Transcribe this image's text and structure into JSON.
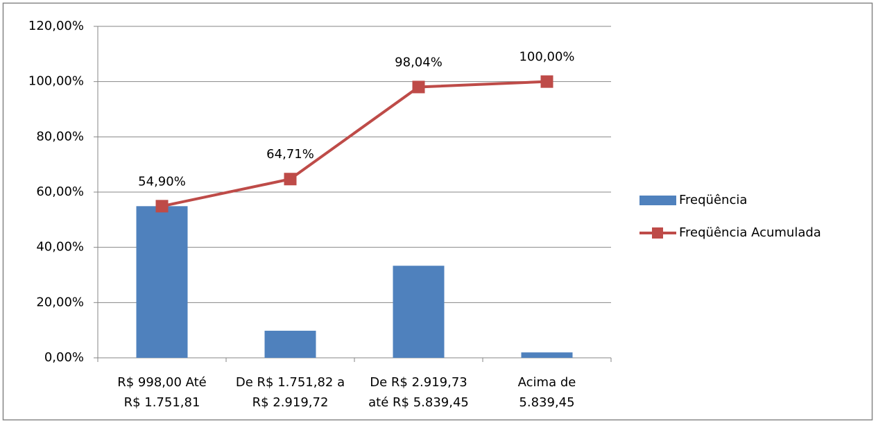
{
  "chart_data": {
    "type": "combo",
    "categories": [
      "R$ 998,00 Até\nR$ 1.751,81",
      "De R$ 1.751,82 a\nR$ 2.919,72",
      "De R$ 2.919,73\naté R$ 5.839,45",
      "Acima de\n5.839,45"
    ],
    "series": [
      {
        "name": "Freqüência",
        "type": "bar",
        "color": "#4f81bd",
        "values": [
          54.9,
          9.81,
          33.33,
          1.96
        ]
      },
      {
        "name": "Freqüência Acumulada",
        "type": "line",
        "color": "#be4b48",
        "values": [
          54.9,
          64.71,
          98.04,
          100.0
        ],
        "value_labels": [
          "54,90%",
          "64,71%",
          "98,04%",
          "100,00%"
        ]
      }
    ],
    "ylim": [
      0,
      120
    ],
    "yticks": [
      {
        "value": 0,
        "label": "0,00%"
      },
      {
        "value": 20,
        "label": "20,00%"
      },
      {
        "value": 40,
        "label": "40,00%"
      },
      {
        "value": 60,
        "label": "60,00%"
      },
      {
        "value": 80,
        "label": "80,00%"
      },
      {
        "value": 100,
        "label": "100,00%"
      },
      {
        "value": 120,
        "label": "120,00%"
      }
    ],
    "grid": true,
    "legend": "right"
  }
}
